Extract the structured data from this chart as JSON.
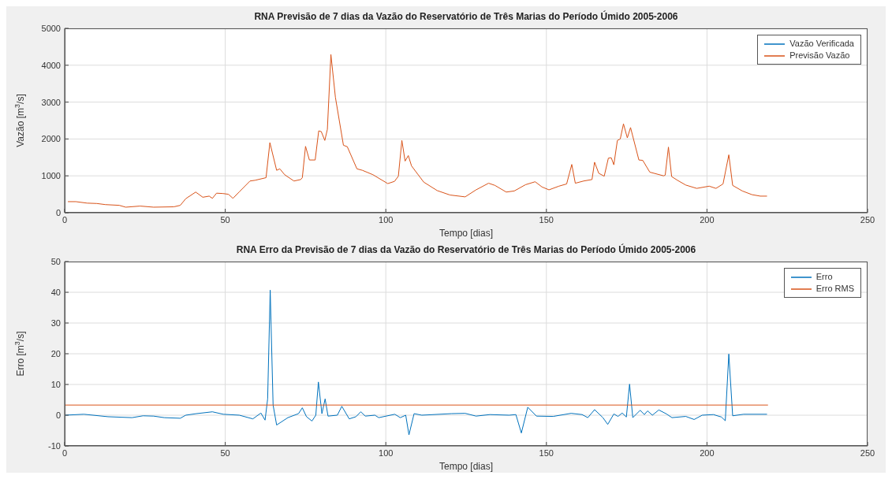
{
  "chart_data": [
    {
      "type": "line",
      "title": "RNA Previsão de 7 dias da Vazão do Reservatório de Três Marias do Período Úmido 2005-2006",
      "xlabel": "Tempo [dias]",
      "ylabel": "Vazão [m$^{3}$/s]",
      "x": [
        1,
        3.5,
        7,
        10,
        12.7,
        17,
        19,
        23.5,
        27.7,
        34,
        36,
        37.7,
        40.8,
        43,
        45,
        46,
        47.3,
        49.3,
        51,
        52.4,
        54.3,
        57.7,
        59.3,
        62.7,
        63.9,
        66,
        67,
        68.5,
        71.4,
        73.5,
        74,
        75,
        76.2,
        78,
        79.1,
        79.9,
        81,
        81.8,
        82.9,
        84.3,
        86.8,
        88,
        91,
        92.7,
        96,
        100.6,
        102.7,
        103.9,
        105,
        106,
        107,
        108,
        111.8,
        116,
        120,
        124.7,
        128.1,
        132,
        134,
        137.5,
        140,
        143.5,
        146.5,
        148.6,
        150.8,
        153.9,
        156.3,
        157.9,
        159,
        161.6,
        164.2,
        165,
        166.3,
        168,
        169.3,
        170.2,
        171,
        172.1,
        173,
        174,
        175.2,
        176.2,
        178.8,
        180,
        182.2,
        186.5,
        187,
        188,
        189,
        190.8,
        193.4,
        196.8,
        200.7,
        202.8,
        205,
        206.8,
        208,
        211,
        214,
        216.6,
        218.7
      ],
      "series": [
        {
          "name": "Vazão Verificada",
          "color": "#0072bd",
          "values": [
            null,
            null,
            null,
            null,
            null,
            null,
            null,
            null,
            null,
            null,
            null,
            null,
            null,
            null,
            null,
            null,
            null,
            null,
            null,
            null,
            null,
            null,
            null,
            null,
            null,
            null,
            null,
            null,
            null,
            null,
            null,
            null,
            null,
            null,
            null,
            null,
            null,
            null,
            null,
            null,
            null,
            null,
            null,
            null,
            null,
            null,
            null,
            null,
            null,
            null,
            null,
            null,
            null,
            null,
            null,
            null,
            null,
            null,
            null,
            null,
            null,
            null,
            null,
            null,
            null,
            null,
            null,
            null,
            null,
            null,
            null,
            null,
            null,
            null,
            null,
            null,
            null,
            null,
            null,
            null,
            null,
            null,
            null,
            null,
            null,
            null,
            null,
            null,
            null,
            null,
            null,
            null,
            null,
            null,
            null,
            null,
            null,
            null,
            null,
            null,
            null
          ]
        },
        {
          "name": "Previsão Vazão",
          "color": "#d95319",
          "values": [
            300,
            300,
            260,
            250,
            220,
            200,
            150,
            180,
            150,
            160,
            200,
            380,
            560,
            420,
            450,
            390,
            530,
            520,
            500,
            390,
            560,
            860,
            880,
            950,
            1900,
            1150,
            1190,
            1030,
            860,
            900,
            950,
            1800,
            1430,
            1430,
            2220,
            2200,
            1960,
            2260,
            4290,
            3130,
            1830,
            1790,
            1190,
            1150,
            1030,
            790,
            850,
            990,
            1960,
            1400,
            1550,
            1270,
            830,
            600,
            480,
            430,
            620,
            800,
            740,
            560,
            590,
            760,
            840,
            700,
            620,
            720,
            780,
            1310,
            800,
            860,
            900,
            1370,
            1070,
            990,
            1480,
            1490,
            1300,
            1960,
            2000,
            2410,
            2030,
            2310,
            1430,
            1420,
            1100,
            1000,
            1020,
            1780,
            980,
            880,
            750,
            660,
            720,
            660,
            780,
            1570,
            740,
            590,
            490,
            450,
            450
          ]
        }
      ],
      "xlim": [
        0,
        250
      ],
      "xticks": [
        0,
        50,
        100,
        150,
        200,
        250
      ],
      "ylim": [
        0,
        5000
      ],
      "yticks": [
        0,
        1000,
        2000,
        3000,
        4000,
        5000
      ],
      "grid": true,
      "legend": "top right"
    },
    {
      "type": "line",
      "title": "RNA Erro da Previsão de 7 dias da Vazão do Reservatório de Três Marias do Período Úmido 2005-2006",
      "xlabel": "Tempo [dias]",
      "ylabel": "Erro [m$^{3}$/s]",
      "series": [
        {
          "name": "Erro",
          "color": "#0072bd",
          "x": [
            0,
            6,
            13.5,
            21,
            24.4,
            27.7,
            31,
            36,
            37.7,
            41,
            46,
            49.4,
            54.4,
            58.6,
            61.1,
            62.4,
            63.2,
            64,
            64.9,
            66,
            69.5,
            72.8,
            74,
            75.3,
            77,
            78.2,
            79,
            80.1,
            81.1,
            82,
            84.9,
            86.3,
            88.6,
            90.7,
            92.2,
            93.6,
            96.6,
            97.8,
            102.8,
            104.5,
            106.2,
            107.2,
            108.8,
            111.2,
            120.4,
            124.7,
            128.1,
            132.4,
            138.4,
            140.5,
            142.2,
            144.2,
            146.9,
            152.1,
            157.7,
            161.1,
            162.9,
            165,
            167.6,
            169.1,
            171,
            172.3,
            173.6,
            174.9,
            175.9,
            176.9,
            179.2,
            180.5,
            181.5,
            183,
            185,
            187.4,
            189.1,
            193.4,
            196,
            198.5,
            202,
            204.5,
            205.7,
            206.8,
            208,
            211.4,
            218.7
          ],
          "values": [
            0,
            0.3,
            -0.5,
            -0.8,
            -0.2,
            -0.3,
            -0.8,
            -1,
            0,
            0.5,
            1.1,
            0.3,
            0,
            -1.2,
            0.7,
            -1.6,
            5.3,
            40.7,
            3.3,
            -3.2,
            -0.8,
            0.5,
            2.4,
            -0.5,
            -1.9,
            0,
            10.8,
            0.5,
            5.3,
            -0.3,
            0,
            2.9,
            -1.2,
            -0.5,
            1.1,
            -0.3,
            0,
            -0.8,
            0.3,
            -0.8,
            0,
            -6.4,
            0.5,
            0,
            0.5,
            0.6,
            -0.3,
            0.2,
            0,
            0.2,
            -5.8,
            2.6,
            -0.3,
            -0.4,
            0.6,
            0.2,
            -0.8,
            1.8,
            -0.8,
            -3,
            0.4,
            -0.4,
            0.7,
            -0.6,
            10.1,
            -0.8,
            1.6,
            0.2,
            1.4,
            0,
            1.7,
            0.4,
            -0.8,
            -0.4,
            -1.4,
            0,
            0.2,
            -0.6,
            -1.8,
            19.9,
            -0.2,
            0.3,
            0.3
          ]
        },
        {
          "name": "Erro RMS",
          "color": "#d95319",
          "x": [
            0,
            219
          ],
          "values": [
            3.3,
            3.3
          ]
        }
      ],
      "xlim": [
        0,
        250
      ],
      "xticks": [
        0,
        50,
        100,
        150,
        200,
        250
      ],
      "ylim": [
        -10,
        50
      ],
      "yticks": [
        -10,
        0,
        10,
        20,
        30,
        40,
        50
      ],
      "grid": true,
      "legend": "top right"
    }
  ]
}
